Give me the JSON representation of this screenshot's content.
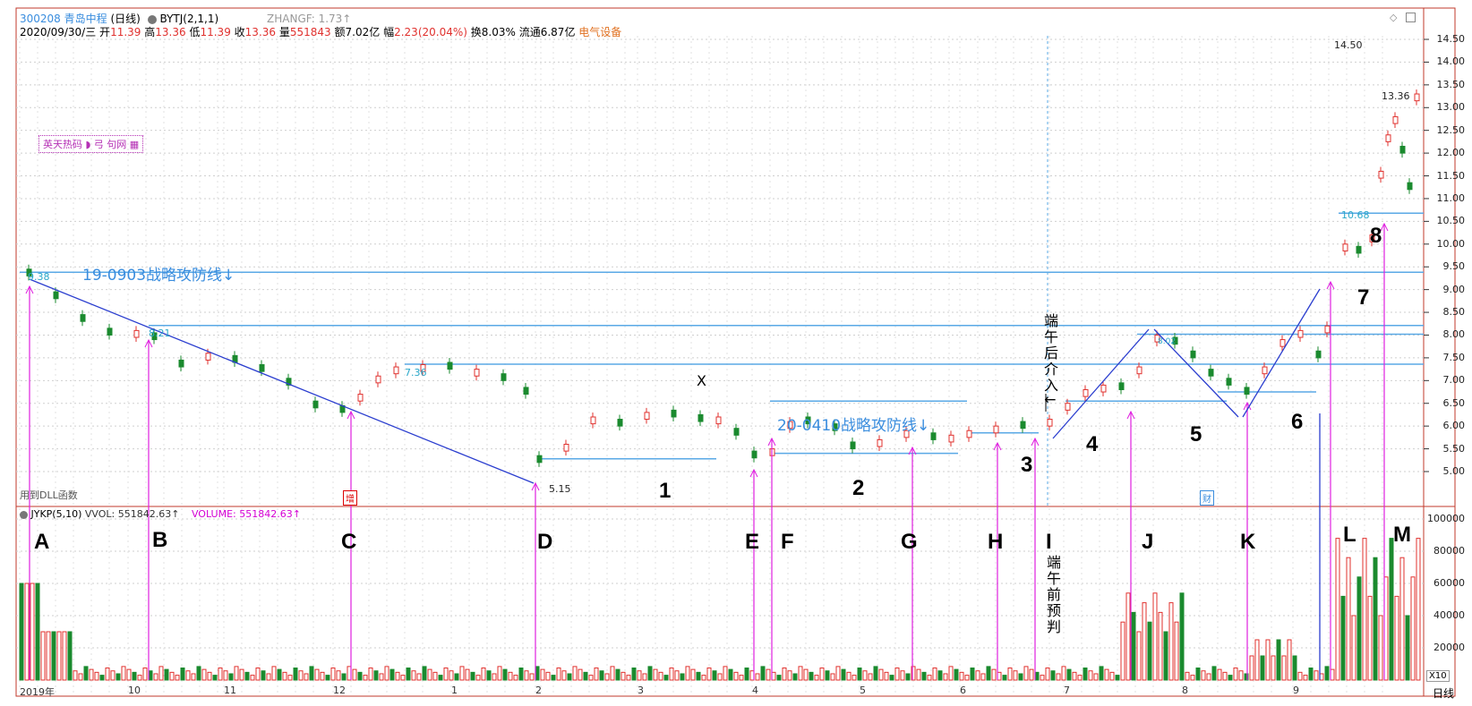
{
  "header": {
    "code": "300208",
    "name": "青岛中程",
    "period": "(日线)",
    "indicator": "BYTJ(2,1,1)",
    "zhangf": "ZHANGF: 1.73↑",
    "line2_date": "2020/09/30/三",
    "open_label": "开",
    "open": "11.39",
    "high_label": "高",
    "high": "13.36",
    "low_label": "低",
    "low": "11.39",
    "close_label": "收",
    "close": "13.36",
    "vol_label": "量",
    "vol": "551843",
    "amt": "额7.02亿",
    "chg_label": "幅",
    "chg": "2.23(20.04%)",
    "turnover": "换8.03%",
    "float": "流通6.87亿",
    "sector": "电气设备"
  },
  "watermark": "英天热码 ◗ 弓 句网 ▦",
  "dll": "用到DLL函数",
  "price_axis": [
    "14.50",
    "14.00",
    "13.50",
    "13.00",
    "12.50",
    "12.00",
    "11.50",
    "11.00",
    "10.50",
    "10.00",
    "9.50",
    "9.00",
    "8.50",
    "8.00",
    "7.50",
    "7.00",
    "6.50",
    "6.00",
    "5.50",
    "5.00"
  ],
  "vol_axis": [
    "100000",
    "80000",
    "60000",
    "40000",
    "20000"
  ],
  "x10": "X10",
  "period_btn": "日线",
  "months": [
    "2019年",
    "10",
    "11",
    "12",
    "1",
    "2",
    "3",
    "4",
    "5",
    "6",
    "7",
    "8",
    "9"
  ],
  "vol_header": {
    "name": "JYKP(5,10)",
    "vvol": "VVOL: 551842.63↑",
    "volume": "VOLUME: 551842.63↑"
  },
  "price_labels": {
    "p938": "9.38",
    "p821": "8.21",
    "p736": "7.36",
    "p515": "5.15",
    "p1068": "10.68",
    "p1450": "14.50",
    "p1336": "13.36",
    "p802": "8.02"
  },
  "line_captions": {
    "l1": "19-0903战略攻防线↓",
    "l2": "20-0410战略攻防线↓"
  },
  "x_mark": "X",
  "numbers": [
    "1",
    "2",
    "3",
    "4",
    "5",
    "6",
    "7",
    "8"
  ],
  "letters": [
    "A",
    "B",
    "C",
    "D",
    "E",
    "F",
    "G",
    "H",
    "I",
    "J",
    "K",
    "L",
    "M"
  ],
  "notes": {
    "after": "端午后介入↓",
    "before": "端午前预判"
  },
  "tags": {
    "t1": "增",
    "t2": "财"
  }
}
